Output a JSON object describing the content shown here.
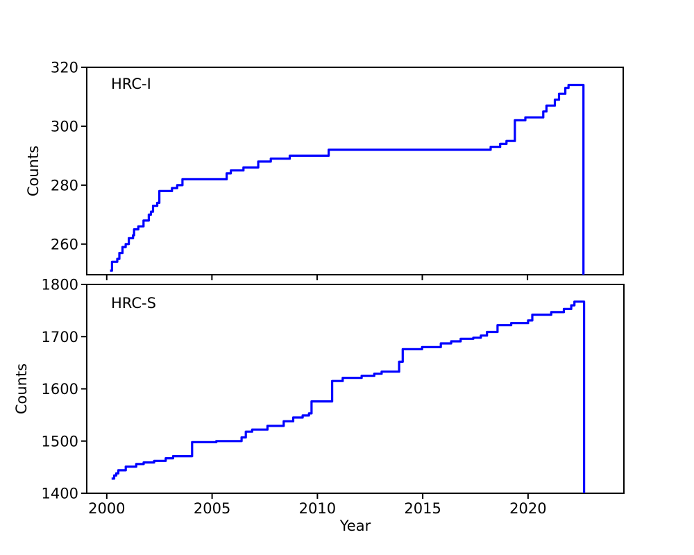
{
  "figure": {
    "background": "#ffffff",
    "line_color": "#0000ff",
    "axis_color": "#000000",
    "xlabel": "Year"
  },
  "chart_data": [
    {
      "type": "line",
      "step": "post",
      "panel_label": "HRC-I",
      "ylabel": "Counts",
      "xlabel": "",
      "xlim": [
        1999.05,
        2024.55
      ],
      "ylim": [
        249.6,
        320
      ],
      "xticks": [
        2000,
        2005,
        2010,
        2015,
        2020
      ],
      "xticklabels": [],
      "yticks": [
        260,
        280,
        300,
        320
      ],
      "yticklabels": [
        "260",
        "280",
        "300",
        "320"
      ],
      "line_color": "#0000ff",
      "points": [
        [
          2000.16,
          251
        ],
        [
          2000.25,
          254
        ],
        [
          2000.5,
          255
        ],
        [
          2000.6,
          257
        ],
        [
          2000.75,
          259
        ],
        [
          2000.9,
          260
        ],
        [
          2001.05,
          262
        ],
        [
          2001.25,
          263
        ],
        [
          2001.3,
          265
        ],
        [
          2001.5,
          266
        ],
        [
          2001.75,
          268
        ],
        [
          2002.0,
          270
        ],
        [
          2002.1,
          271
        ],
        [
          2002.2,
          273
        ],
        [
          2002.4,
          274
        ],
        [
          2002.5,
          278
        ],
        [
          2003.1,
          279
        ],
        [
          2003.35,
          280
        ],
        [
          2003.6,
          282
        ],
        [
          2005.7,
          284
        ],
        [
          2005.9,
          285
        ],
        [
          2006.5,
          286
        ],
        [
          2007.2,
          288
        ],
        [
          2007.8,
          289
        ],
        [
          2008.7,
          290
        ],
        [
          2010.55,
          292
        ],
        [
          2018.25,
          293
        ],
        [
          2018.7,
          294
        ],
        [
          2019.0,
          295
        ],
        [
          2019.4,
          302
        ],
        [
          2019.9,
          303
        ],
        [
          2020.75,
          305
        ],
        [
          2020.9,
          307
        ],
        [
          2021.3,
          309
        ],
        [
          2021.5,
          311
        ],
        [
          2021.8,
          313
        ],
        [
          2021.95,
          314
        ],
        [
          2022.66,
          249.6
        ]
      ]
    },
    {
      "type": "line",
      "step": "post",
      "panel_label": "HRC-S",
      "ylabel": "Counts",
      "xlabel": "Year",
      "xlim": [
        1999.05,
        2024.55
      ],
      "ylim": [
        1400,
        1800
      ],
      "xticks": [
        2000,
        2005,
        2010,
        2015,
        2020
      ],
      "xticklabels": [
        "2000",
        "2005",
        "2010",
        "2015",
        "2020"
      ],
      "yticks": [
        1400,
        1500,
        1600,
        1700,
        1800
      ],
      "yticklabels": [
        "1400",
        "1500",
        "1600",
        "1700",
        "1800"
      ],
      "line_color": "#0000ff",
      "points": [
        [
          2000.23,
          1428
        ],
        [
          2000.35,
          1434
        ],
        [
          2000.45,
          1438
        ],
        [
          2000.55,
          1444
        ],
        [
          2000.9,
          1451
        ],
        [
          2001.4,
          1456
        ],
        [
          2001.75,
          1459
        ],
        [
          2002.25,
          1462
        ],
        [
          2002.8,
          1467
        ],
        [
          2003.15,
          1471
        ],
        [
          2004.05,
          1498
        ],
        [
          2005.2,
          1500
        ],
        [
          2006.4,
          1507
        ],
        [
          2006.6,
          1518
        ],
        [
          2006.9,
          1522
        ],
        [
          2007.63,
          1529
        ],
        [
          2008.4,
          1538
        ],
        [
          2008.85,
          1545
        ],
        [
          2009.3,
          1549
        ],
        [
          2009.6,
          1553
        ],
        [
          2009.72,
          1576
        ],
        [
          2010.7,
          1615
        ],
        [
          2011.2,
          1621
        ],
        [
          2012.1,
          1625
        ],
        [
          2012.7,
          1629
        ],
        [
          2013.05,
          1633
        ],
        [
          2013.88,
          1652
        ],
        [
          2014.05,
          1676
        ],
        [
          2014.97,
          1680
        ],
        [
          2015.86,
          1687
        ],
        [
          2016.35,
          1691
        ],
        [
          2016.8,
          1696
        ],
        [
          2017.4,
          1698
        ],
        [
          2017.76,
          1702
        ],
        [
          2018.05,
          1709
        ],
        [
          2018.55,
          1722
        ],
        [
          2019.2,
          1726
        ],
        [
          2020.0,
          1731
        ],
        [
          2020.2,
          1742
        ],
        [
          2021.1,
          1747
        ],
        [
          2021.7,
          1753
        ],
        [
          2022.05,
          1760
        ],
        [
          2022.2,
          1767
        ],
        [
          2022.66,
          1400
        ]
      ]
    }
  ]
}
